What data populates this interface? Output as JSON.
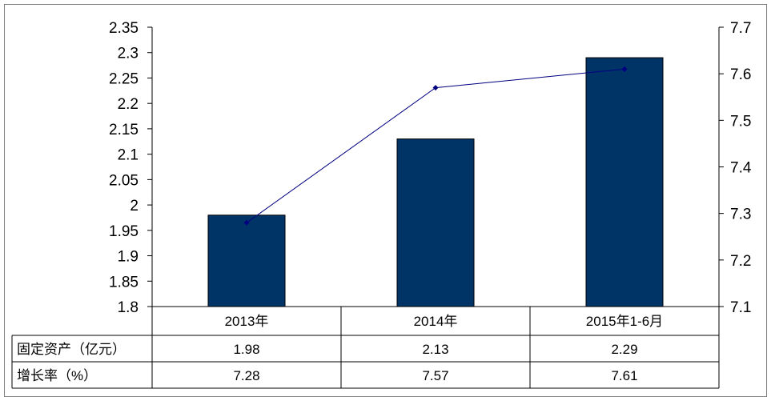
{
  "chart_data": {
    "type": "bar",
    "categories": [
      "2013年",
      "2014年",
      "2015年1-6月"
    ],
    "series": [
      {
        "name": "固定资产（亿元）",
        "type": "bar",
        "axis": "left",
        "values": [
          1.98,
          2.13,
          2.29
        ]
      },
      {
        "name": "增长率（%）",
        "type": "line",
        "axis": "right",
        "values": [
          7.28,
          7.57,
          7.61
        ]
      }
    ],
    "left_axis": {
      "ylim": [
        1.8,
        2.35
      ],
      "ticks": [
        "1.8",
        "1.85",
        "1.9",
        "1.95",
        "2",
        "2.05",
        "2.1",
        "2.15",
        "2.2",
        "2.25",
        "2.3",
        "2.35"
      ]
    },
    "right_axis": {
      "ylim": [
        7.1,
        7.7
      ],
      "ticks": [
        "7.1",
        "7.2",
        "7.3",
        "7.4",
        "7.5",
        "7.6",
        "7.7"
      ]
    },
    "table": {
      "rows": [
        {
          "label": "固定资产（亿元）",
          "values": [
            "1.98",
            "2.13",
            "2.29"
          ]
        },
        {
          "label": "增长率（%）",
          "values": [
            "7.28",
            "7.57",
            "7.61"
          ]
        }
      ]
    },
    "grid": false,
    "colors": {
      "bar": "#003366",
      "line": "#000080"
    }
  }
}
